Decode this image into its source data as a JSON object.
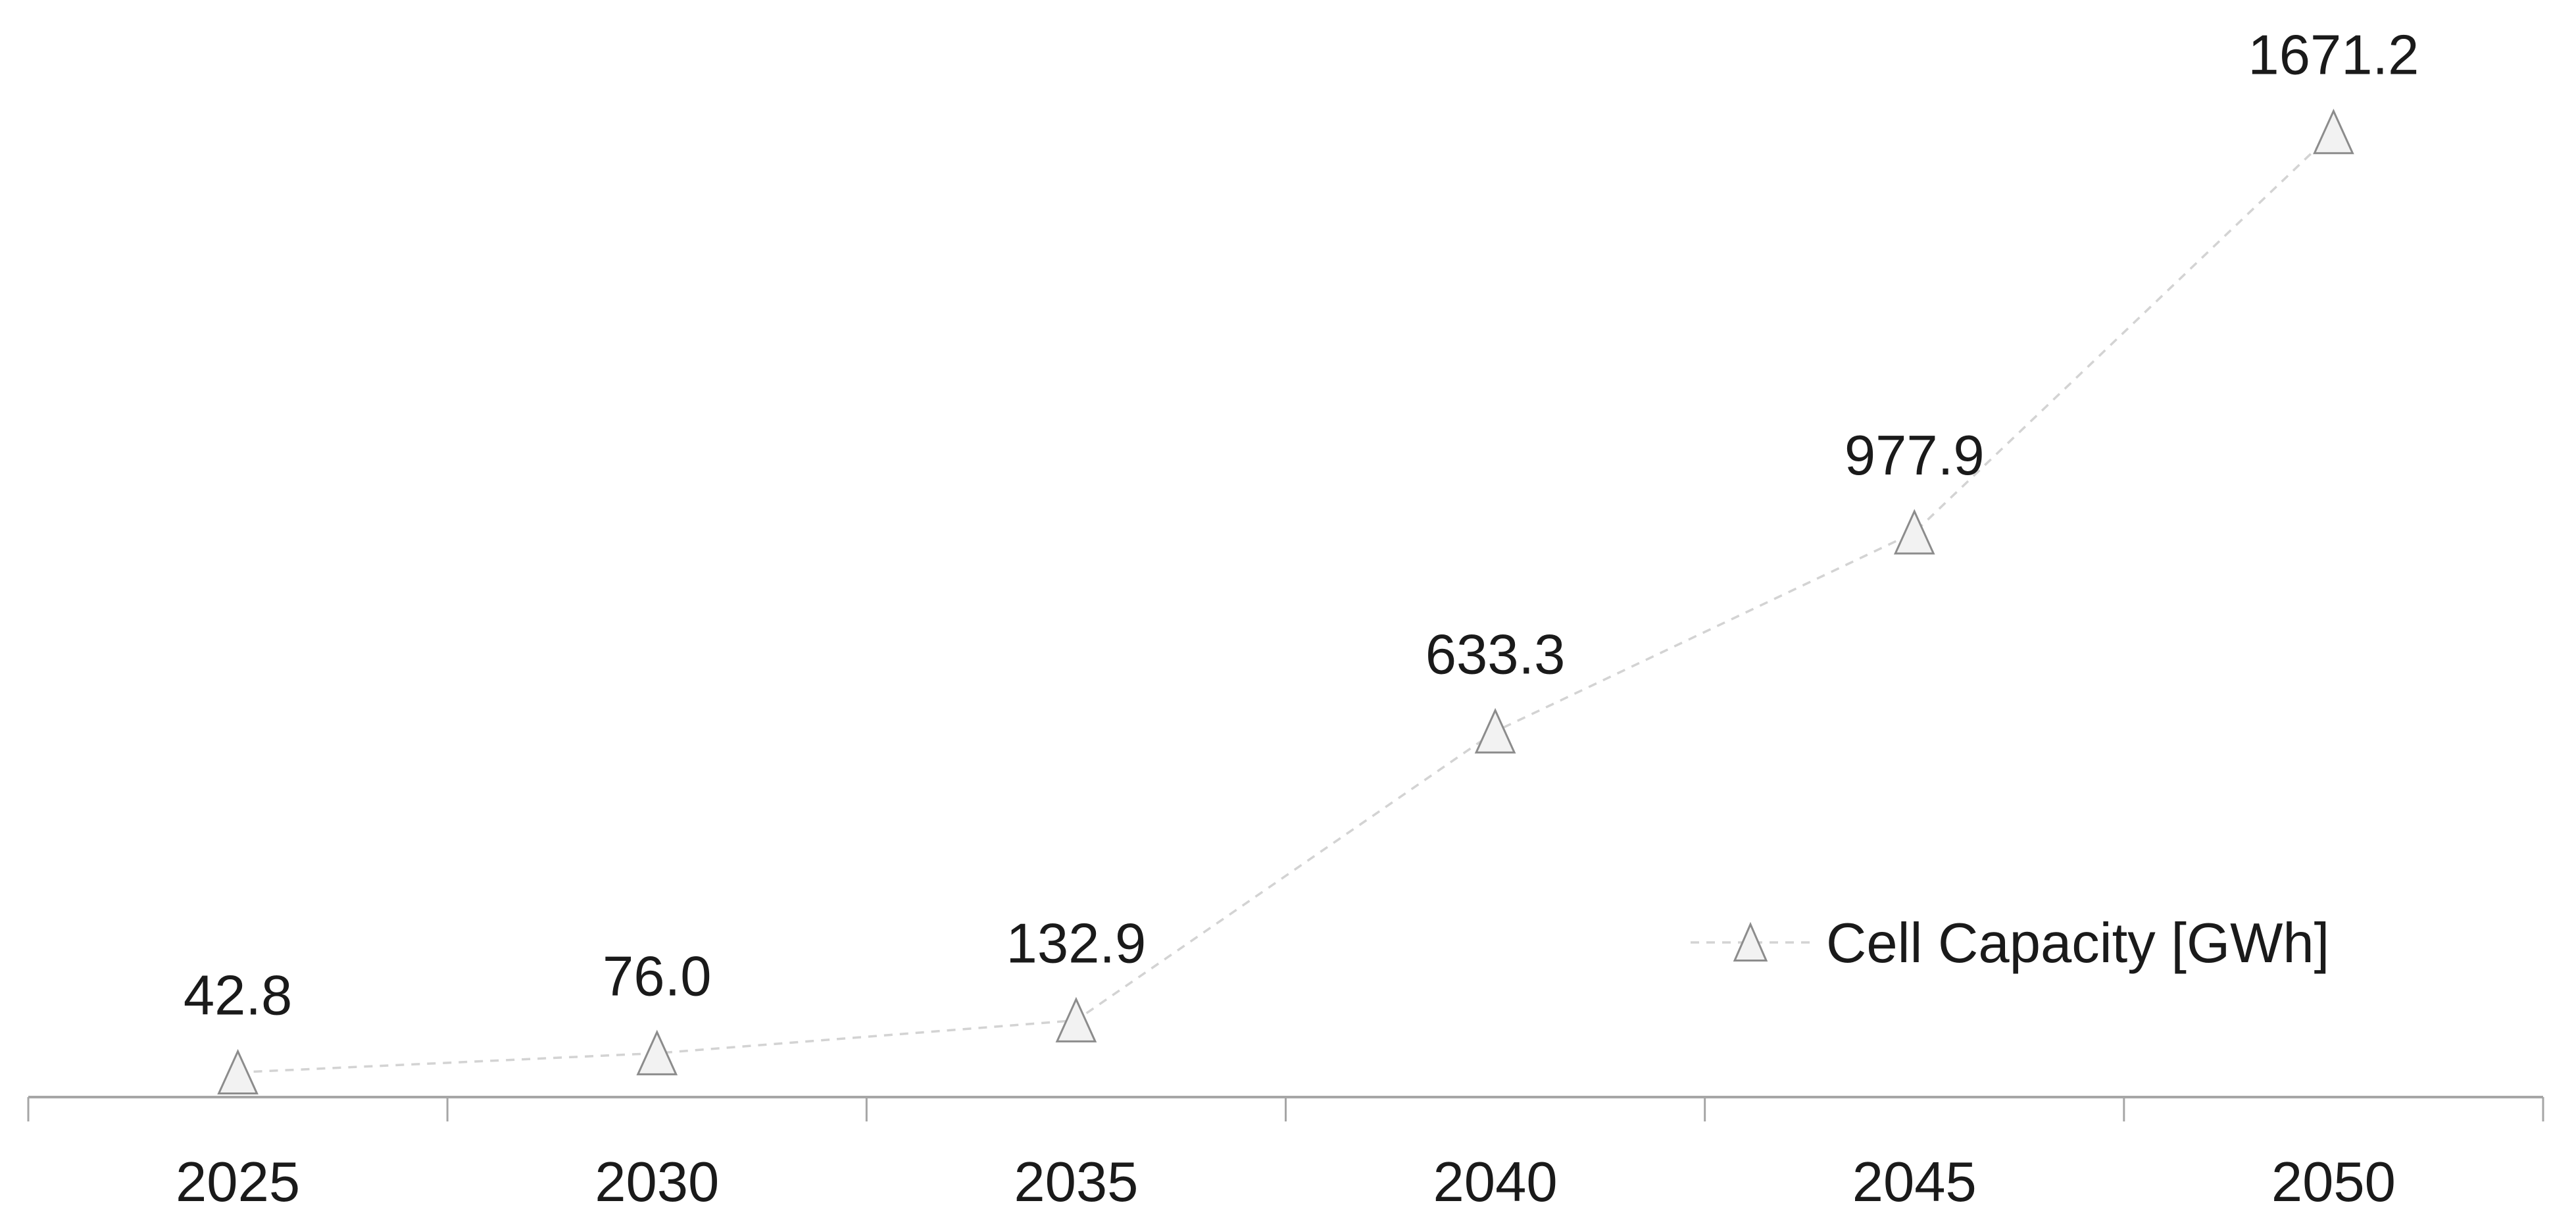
{
  "chart_data": {
    "type": "line",
    "title": "",
    "xlabel": "",
    "ylabel": "",
    "categories": [
      "2025",
      "2030",
      "2035",
      "2040",
      "2045",
      "2050"
    ],
    "series": [
      {
        "name": "Cell Capacity [GWh]",
        "values": [
          42.8,
          76.0,
          132.9,
          633.3,
          977.9,
          1671.2
        ],
        "data_labels": [
          "42.8",
          "76.0",
          "132.9",
          "633.3",
          "977.9",
          "1671.2"
        ],
        "marker": "triangle",
        "line_style": "dashed"
      }
    ],
    "ylim": [
      0,
      1900
    ],
    "grid": false,
    "y_axis_visible": false,
    "data_labels_position": "above",
    "legend_position": "inside-right"
  },
  "colors": {
    "background": "#ffffff",
    "series_line": "#d3d3d3",
    "marker_fill": "#f2f2f2",
    "marker_stroke": "#8c8c8c",
    "axis": "#a6a6a6",
    "text": "#1a1a1a"
  }
}
